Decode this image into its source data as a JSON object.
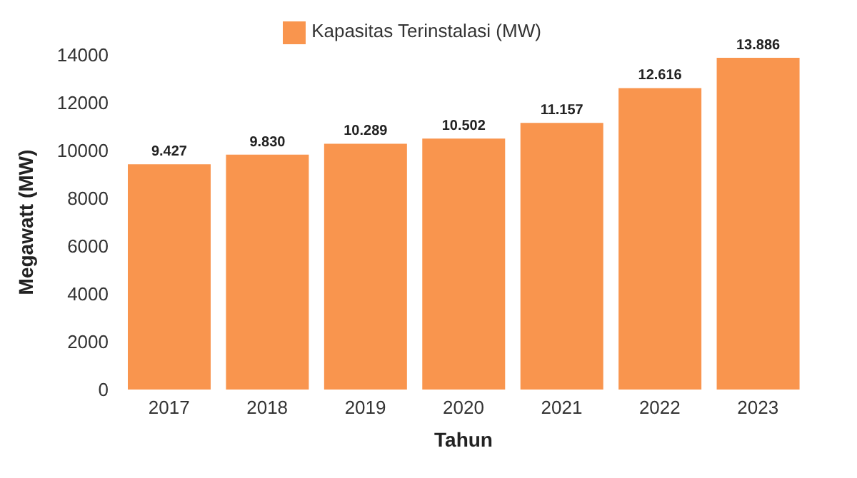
{
  "chart_data": {
    "type": "bar",
    "xlabel": "Tahun",
    "ylabel": "Megawatt (MW)",
    "categories": [
      "2017",
      "2018",
      "2019",
      "2020",
      "2021",
      "2022",
      "2023"
    ],
    "series": [
      {
        "name": "Kapasitas Terinstalasi (MW)",
        "color": "#f9954e",
        "values": [
          9427,
          9830,
          10289,
          10502,
          11157,
          12616,
          13886
        ],
        "value_labels": [
          "9.427",
          "9.830",
          "10.289",
          "10.502",
          "11.157",
          "12.616",
          "13.886"
        ]
      }
    ],
    "ylim": [
      0,
      14000
    ],
    "yticks": [
      0,
      2000,
      4000,
      6000,
      8000,
      10000,
      12000,
      14000
    ],
    "grid": false,
    "legend": "top"
  }
}
